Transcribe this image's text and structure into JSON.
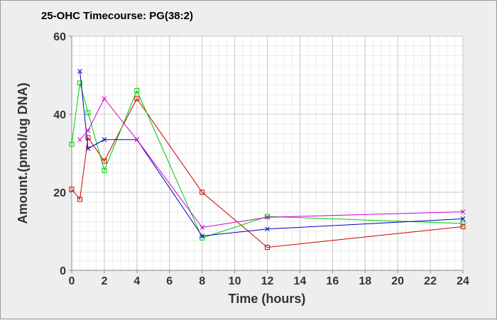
{
  "chart_data": {
    "type": "line",
    "title": "25-OHC Timecourse: PG(38:2)",
    "xlabel": "Time (hours)",
    "ylabel": "Amount.(pmol/ug DNA)",
    "xlim": [
      0,
      24
    ],
    "ylim": [
      0,
      60
    ],
    "xticks": [
      0,
      2,
      4,
      6,
      8,
      10,
      12,
      14,
      16,
      18,
      20,
      22,
      24
    ],
    "yticks": [
      0,
      20,
      40,
      60
    ],
    "grid": true,
    "series": [
      {
        "name": "red",
        "color": "#cc0000",
        "marker": "square",
        "x": [
          0,
          0.5,
          1,
          2,
          4,
          8,
          12,
          24
        ],
        "y": [
          20.8,
          18.2,
          34.0,
          28.0,
          44.0,
          20.0,
          5.9,
          11.2
        ]
      },
      {
        "name": "green",
        "color": "#00cc00",
        "marker": "square",
        "x": [
          0,
          0.5,
          1,
          2,
          4,
          8,
          12,
          24
        ],
        "y": [
          32.3,
          48.0,
          40.4,
          25.6,
          46.1,
          8.3,
          13.8,
          12.0
        ]
      },
      {
        "name": "blue",
        "color": "#0000bb",
        "marker": "x",
        "x": [
          0.5,
          1,
          2,
          4,
          8,
          12,
          24
        ],
        "y": [
          51.0,
          31.2,
          33.5,
          33.5,
          8.8,
          10.6,
          13.2
        ]
      },
      {
        "name": "magenta",
        "color": "#cc00cc",
        "marker": "x",
        "x": [
          0.5,
          1,
          2,
          4,
          8,
          12,
          24
        ],
        "y": [
          33.5,
          35.8,
          44.0,
          33.5,
          11.0,
          13.6,
          15.0
        ]
      }
    ]
  }
}
